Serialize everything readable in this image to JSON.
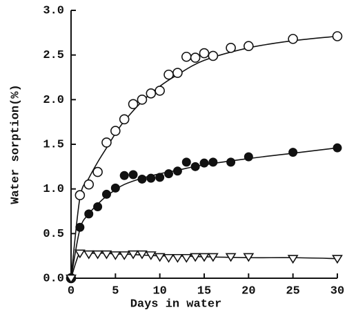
{
  "chart_data": {
    "type": "scatter",
    "xlabel": "Days in water",
    "ylabel": "Water sorption(%)",
    "xlim": [
      0,
      30
    ],
    "xticks": [
      0,
      5,
      10,
      15,
      20,
      25,
      30
    ],
    "ylim": [
      0,
      3
    ],
    "yticks": [
      {
        "value": 0,
        "label": "0.0"
      },
      0.5,
      {
        "value": 1,
        "label": "1.0"
      },
      1.5,
      {
        "value": 2,
        "label": "2.0"
      },
      2.5,
      {
        "value": 3,
        "label": "3.0"
      }
    ],
    "x": [
      0,
      1,
      2,
      3,
      4,
      5,
      6,
      7,
      8,
      9,
      10,
      11,
      12,
      13,
      14,
      15,
      16,
      18,
      20,
      25,
      30
    ],
    "series": [
      {
        "marker": "open-circle",
        "color": "#111111",
        "values": [
          0,
          0.93,
          1.05,
          1.19,
          1.52,
          1.65,
          1.78,
          1.95,
          2.0,
          2.07,
          2.1,
          2.28,
          2.3,
          2.48,
          2.47,
          2.52,
          2.49,
          2.58,
          2.6,
          2.68,
          2.71
        ]
      },
      {
        "marker": "filled-circle",
        "color": "#111111",
        "values": [
          0,
          0.57,
          0.72,
          0.8,
          0.94,
          1.01,
          1.15,
          1.16,
          1.11,
          1.12,
          1.13,
          1.17,
          1.2,
          1.3,
          1.25,
          1.29,
          1.3,
          1.3,
          1.36,
          1.41,
          1.46
        ]
      },
      {
        "marker": "open-triangle",
        "color": "#111111",
        "values": [
          0,
          0.28,
          0.27,
          0.27,
          0.27,
          0.26,
          0.26,
          0.27,
          0.27,
          0.26,
          0.24,
          0.23,
          0.23,
          0.23,
          0.24,
          0.24,
          0.24,
          0.24,
          0.24,
          0.22,
          0.22
        ]
      }
    ],
    "curves": [
      {
        "color": "#111111",
        "x": [
          0,
          1,
          2,
          3,
          4,
          5,
          6,
          8,
          10,
          12,
          15,
          20,
          25,
          30
        ],
        "values": [
          0,
          0.9,
          1.12,
          1.3,
          1.46,
          1.62,
          1.76,
          1.98,
          2.15,
          2.28,
          2.44,
          2.58,
          2.66,
          2.71
        ]
      },
      {
        "color": "#111111",
        "x": [
          0,
          1,
          2,
          3,
          4,
          5,
          6,
          8,
          10,
          12,
          15,
          20,
          25,
          30
        ],
        "values": [
          0,
          0.55,
          0.72,
          0.83,
          0.92,
          0.99,
          1.05,
          1.12,
          1.17,
          1.21,
          1.27,
          1.34,
          1.4,
          1.46
        ]
      },
      {
        "color": "#111111",
        "x": [
          0,
          1,
          2,
          3,
          4,
          5,
          6,
          8,
          10,
          12,
          15,
          20,
          25,
          30
        ],
        "values": [
          0,
          0.29,
          0.28,
          0.28,
          0.28,
          0.27,
          0.27,
          0.26,
          0.25,
          0.25,
          0.24,
          0.23,
          0.23,
          0.22
        ]
      }
    ]
  }
}
